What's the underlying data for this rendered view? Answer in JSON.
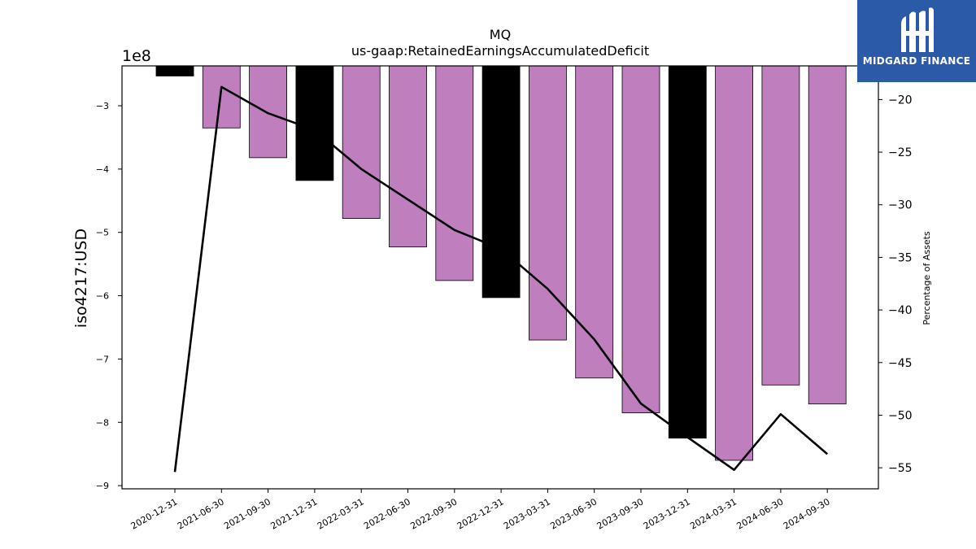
{
  "chart_data": {
    "type": "bar",
    "title": "MQ",
    "subtitle": "us-gaap:RetainedEarningsAccumulatedDeficit",
    "ylabel": "iso4217:USD",
    "y_offset_label": "1e8",
    "y2label": "Percentage of Assets",
    "categories": [
      "2020-12-31",
      "2021-06-30",
      "2021-09-30",
      "2021-12-31",
      "2022-03-31",
      "2022-06-30",
      "2022-09-30",
      "2022-12-31",
      "2023-03-31",
      "2023-06-30",
      "2023-09-30",
      "2023-12-31",
      "2024-03-31",
      "2024-06-30",
      "2024-09-30"
    ],
    "series": [
      {
        "values": [
          -2.53,
          -3.35,
          -3.82,
          -4.18,
          -4.78,
          -5.23,
          -5.76,
          -6.03,
          -6.7,
          -7.3,
          -7.85,
          -8.25,
          -8.6,
          -7.41,
          -7.71
        ],
        "unit_multiplier": 100000000,
        "highlight_year_end": true,
        "bar_color": "#bf7fbf",
        "year_end_color": "#000000"
      },
      {
        "values": [
          -55.4,
          -18.8,
          -21.3,
          -22.9,
          -26.6,
          -29.5,
          -32.4,
          -34.2,
          -38.0,
          -42.8,
          -48.9,
          -52.1,
          -55.2,
          -49.9,
          -53.7
        ],
        "axis": "right",
        "line_color": "#000000"
      }
    ],
    "ylim": [
      -9.05,
      -2.37
    ],
    "yticks": [
      -3,
      -4,
      -5,
      -6,
      -7,
      -8,
      -9
    ],
    "y2lim": [
      -57.0,
      -16.8
    ],
    "y2ticks": [
      -20,
      -25,
      -30,
      -35,
      -40,
      -45,
      -50,
      -55
    ]
  },
  "logo": {
    "text": "MIDGARD FINANCE",
    "color": "#2b5aa8"
  }
}
